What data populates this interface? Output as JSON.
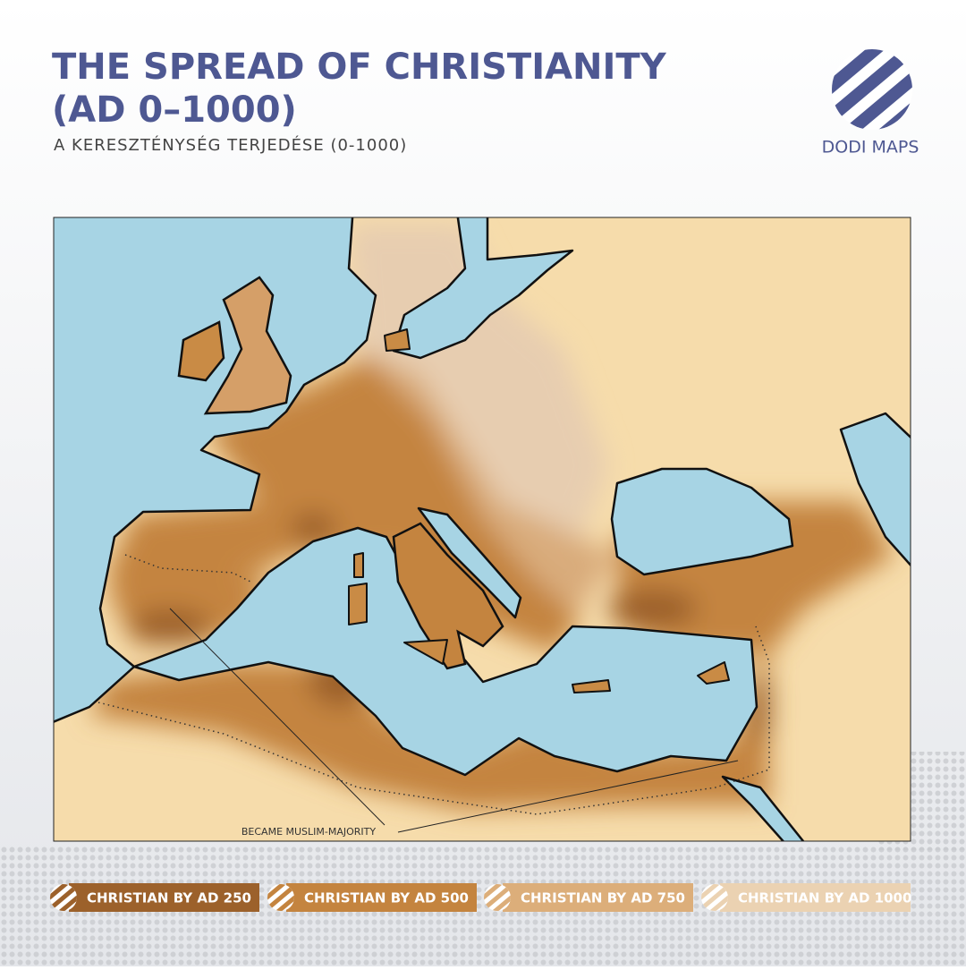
{
  "header": {
    "title": [
      "THE SPREAD OF CHRISTIANITY",
      "(AD 0–1000)"
    ],
    "subtitle": "A KERESZTÉNYSÉG TERJEDÉSE (0-1000)"
  },
  "logo": {
    "text": "DODI MAPS"
  },
  "map": {
    "annotation": "BECAME MUSLIM-MAJORITY"
  },
  "legend": [
    {
      "label": "CHRISTIAN BY AD 250",
      "color": "#9c612b"
    },
    {
      "label": "CHRISTIAN BY AD 500",
      "color": "#c4843f"
    },
    {
      "label": "CHRISTIAN BY AD 750",
      "color": "#dcae7a"
    },
    {
      "label": "CHRISTIAN BY AD 1000",
      "color": "#ebd2b2"
    }
  ]
}
